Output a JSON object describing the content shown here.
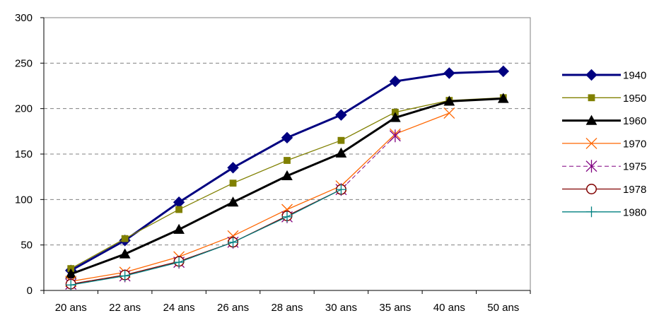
{
  "chart_data": {
    "type": "line",
    "title": "",
    "xlabel": "",
    "ylabel": "",
    "categories": [
      "20 ans",
      "22 ans",
      "24 ans",
      "26 ans",
      "28 ans",
      "30 ans",
      "35 ans",
      "40 ans",
      "50 ans"
    ],
    "ylim": [
      0,
      300
    ],
    "yticks": [
      0,
      50,
      100,
      150,
      200,
      250,
      300
    ],
    "grid": "horizontal dashed",
    "legend": "right",
    "series": [
      {
        "name": "1940",
        "color": "#000080",
        "marker": "diamond",
        "line": "solid-thick",
        "values": [
          22,
          55,
          97,
          135,
          168,
          193,
          230,
          239,
          241
        ]
      },
      {
        "name": "1950",
        "color": "#808000",
        "marker": "square",
        "line": "solid",
        "values": [
          24,
          57,
          89,
          118,
          143,
          165,
          196,
          209,
          212
        ]
      },
      {
        "name": "1960",
        "color": "#000000",
        "marker": "triangle",
        "line": "solid-thick",
        "values": [
          18,
          40,
          67,
          97,
          126,
          151,
          190,
          208,
          211
        ]
      },
      {
        "name": "1970",
        "color": "#FF6600",
        "marker": "x",
        "line": "solid",
        "values": [
          10,
          20,
          37,
          60,
          89,
          115,
          172,
          195,
          null
        ]
      },
      {
        "name": "1975",
        "color": "#800080",
        "marker": "star",
        "line": "dashed",
        "values": [
          7,
          16,
          31,
          53,
          81,
          111,
          170,
          null,
          null
        ]
      },
      {
        "name": "1978",
        "color": "#800000",
        "marker": "circle",
        "line": "solid",
        "values": [
          7,
          17,
          32,
          53,
          82,
          111,
          null,
          null,
          null
        ]
      },
      {
        "name": "1980",
        "color": "#008080",
        "marker": "plus",
        "line": "solid",
        "values": [
          6,
          16,
          31,
          53,
          81,
          111,
          null,
          null,
          null
        ]
      }
    ]
  }
}
